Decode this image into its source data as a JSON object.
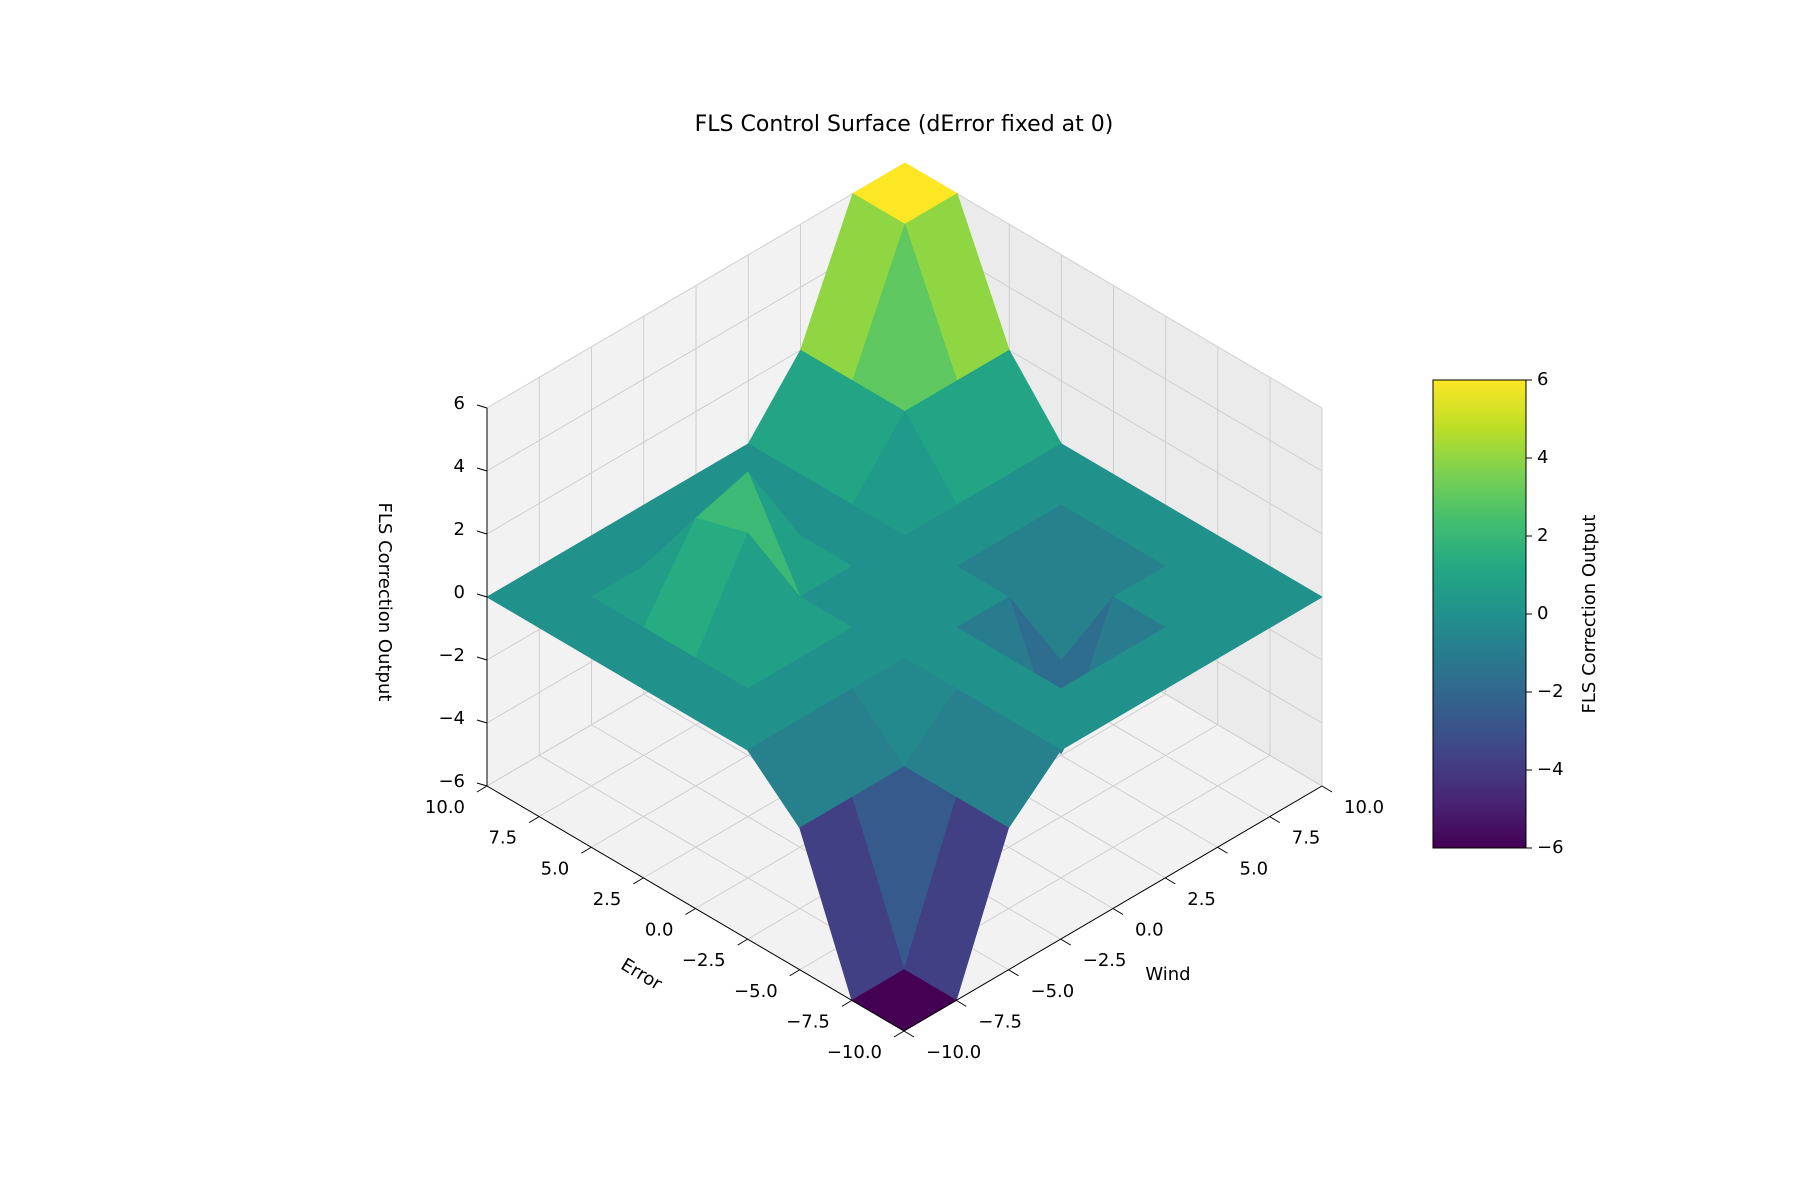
{
  "chart_data": {
    "type": "surface",
    "title": "FLS Control Surface (dError fixed at 0)",
    "xlabel": "Error",
    "ylabel": "Wind",
    "zlabel": "FLS Correction Output",
    "x": [
      -10,
      -7.5,
      -5,
      -2.5,
      0,
      2.5,
      5,
      7.5,
      10
    ],
    "y": [
      -10,
      -7.5,
      -5,
      -2.5,
      0,
      2.5,
      5,
      7.5,
      10
    ],
    "z": [
      [
        -6,
        -6,
        -1.5,
        0,
        0,
        0,
        0,
        0,
        0
      ],
      [
        -6,
        -6,
        -1.5,
        0,
        0,
        0,
        0,
        0,
        0
      ],
      [
        -1.5,
        -1.5,
        -1.5,
        0,
        0,
        -4,
        0,
        0,
        0
      ],
      [
        0,
        0,
        0,
        0,
        0,
        0,
        -3,
        0,
        0
      ],
      [
        0,
        0,
        0,
        0,
        0,
        0,
        0,
        0,
        0
      ],
      [
        0,
        0,
        3,
        0,
        0,
        0,
        0,
        0,
        0
      ],
      [
        0,
        0,
        2.5,
        3,
        0,
        0,
        2,
        2,
        2
      ],
      [
        0,
        0,
        0,
        0,
        0,
        0,
        2,
        6,
        6
      ],
      [
        0,
        0,
        0,
        0,
        0,
        0,
        2,
        6,
        6
      ]
    ],
    "xlim": [
      -10,
      10
    ],
    "ylim": [
      -10,
      10
    ],
    "zlim": [
      -6,
      6
    ],
    "xticks": [
      {
        "value": -10,
        "label": "−10.0"
      },
      {
        "value": -7.5,
        "label": "−7.5"
      },
      {
        "value": -5,
        "label": "−5.0"
      },
      {
        "value": -2.5,
        "label": "−2.5"
      },
      {
        "value": 0,
        "label": "0.0"
      },
      {
        "value": 2.5,
        "label": "2.5"
      },
      {
        "value": 5,
        "label": "5.0"
      },
      {
        "value": 7.5,
        "label": "7.5"
      },
      {
        "value": 10,
        "label": "10.0"
      }
    ],
    "yticks": [
      {
        "value": -10,
        "label": "−10.0"
      },
      {
        "value": -7.5,
        "label": "−7.5"
      },
      {
        "value": -5,
        "label": "−5.0"
      },
      {
        "value": -2.5,
        "label": "−2.5"
      },
      {
        "value": 0,
        "label": "0.0"
      },
      {
        "value": 2.5,
        "label": "2.5"
      },
      {
        "value": 5,
        "label": "5.0"
      },
      {
        "value": 7.5,
        "label": "7.5"
      },
      {
        "value": 10,
        "label": "10.0"
      }
    ],
    "zticks": [
      {
        "value": -6,
        "label": "−6"
      },
      {
        "value": -4,
        "label": "−4"
      },
      {
        "value": -2,
        "label": "−2"
      },
      0,
      2,
      4,
      6
    ],
    "colormap": "viridis",
    "clim": [
      -6,
      6
    ],
    "colorbar_label": "FLS Correction Output",
    "colorbar_ticks": [
      {
        "value": -6,
        "label": "−6"
      },
      {
        "value": -4,
        "label": "−4"
      },
      {
        "value": -2,
        "label": "−2"
      },
      0,
      2,
      4,
      6
    ],
    "grid": true
  }
}
